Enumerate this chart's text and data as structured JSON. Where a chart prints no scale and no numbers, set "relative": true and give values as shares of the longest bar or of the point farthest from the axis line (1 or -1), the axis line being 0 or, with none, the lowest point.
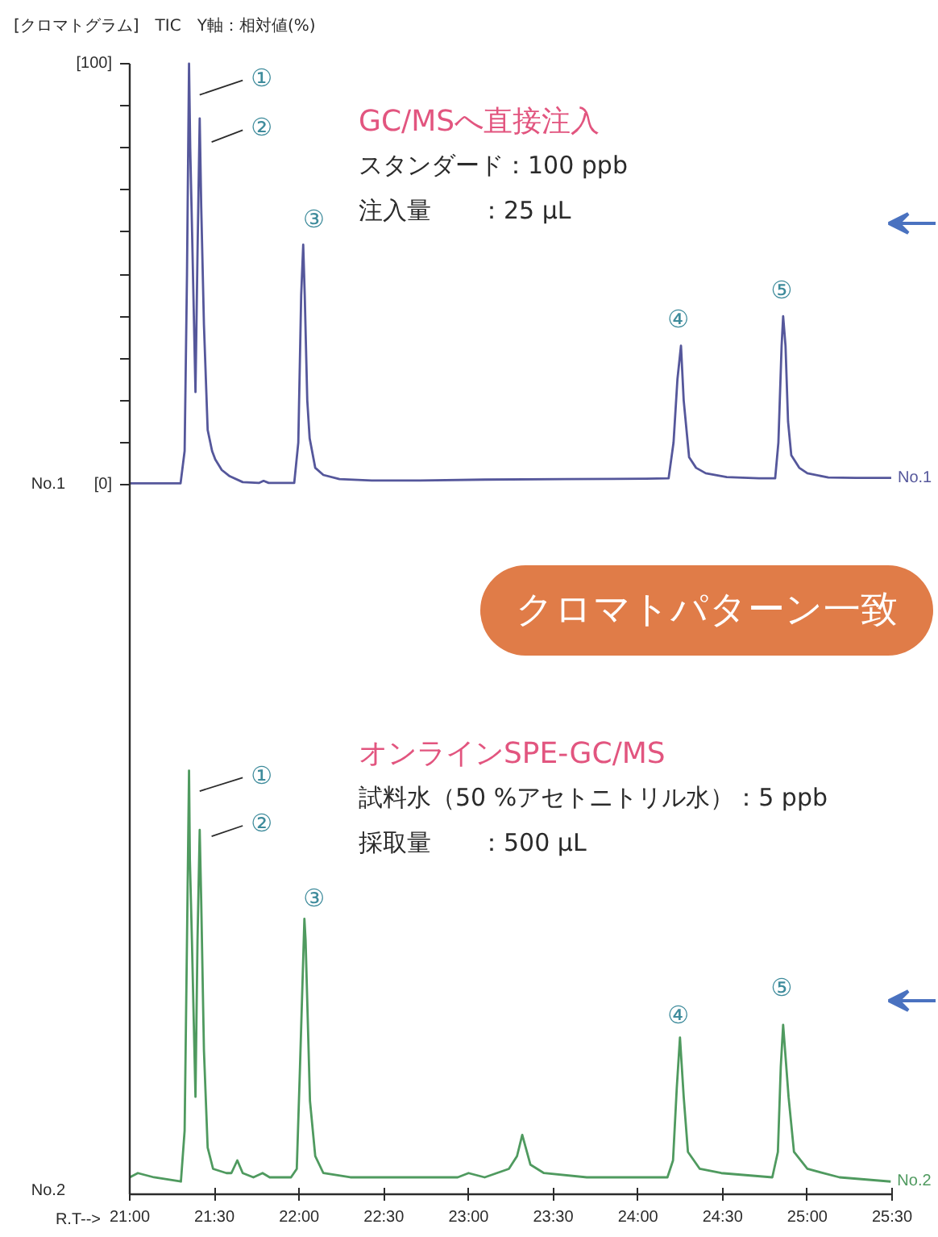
{
  "chart_data": [
    {
      "type": "line",
      "title": "[クロマトグラム]　TIC　Y軸：相対値(%)",
      "x": [
        21,
        21.3,
        21.324,
        21.338,
        21.35,
        21.357,
        21.368,
        21.388,
        21.4,
        21.413,
        21.422,
        21.438,
        21.46,
        21.486,
        21.505,
        21.543,
        21.59,
        21.667,
        21.762,
        21.79,
        21.82,
        21.971,
        21.995,
        22.012,
        22.024,
        22.033,
        22.048,
        22.062,
        22.095,
        22.143,
        22.238,
        22.429,
        22.714,
        23.095,
        23.571,
        24.048,
        24.181,
        24.21,
        24.233,
        24.254,
        24.27,
        24.302,
        24.343,
        24.4,
        24.524,
        24.714,
        24.81,
        24.829,
        24.848,
        24.857,
        24.871,
        24.886,
        24.905,
        24.952,
        25,
        25.124,
        25.286,
        25.495
      ],
      "series": [
        {
          "name": "No.1",
          "color": "#55579b",
          "values": [
            0.3,
            0.3,
            8,
            50,
            100,
            80,
            60,
            22,
            55,
            87,
            66,
            38,
            13,
            8,
            6,
            3.5,
            2,
            0.6,
            0.4,
            0.9,
            0.4,
            0.4,
            10,
            45,
            57,
            45,
            20,
            11,
            4,
            2.3,
            1.3,
            1,
            1,
            1.2,
            1.3,
            1.4,
            1.5,
            10,
            25,
            33,
            20,
            6.5,
            4,
            2.7,
            1.8,
            1.5,
            1.5,
            10,
            33,
            40,
            33,
            15,
            7,
            4,
            2.7,
            1.7,
            1.6,
            1.6
          ]
        }
      ],
      "xlim": [
        21,
        25.5
      ],
      "ylim": [
        0,
        100
      ],
      "yticks": [
        {
          "value": 0,
          "label": "[0]"
        },
        {
          "value": 10,
          "label": null
        },
        {
          "value": 20,
          "label": null
        },
        {
          "value": 30,
          "label": null
        },
        {
          "value": 40,
          "label": null
        },
        {
          "value": 50,
          "label": null
        },
        {
          "value": 60,
          "label": null
        },
        {
          "value": 70,
          "label": null
        },
        {
          "value": 80,
          "label": null
        },
        {
          "value": 90,
          "label": null
        },
        {
          "value": 100,
          "label": "[100]"
        }
      ],
      "tick_labels": "y",
      "annotations": [
        "GC/MSへ直接注入",
        "スタンダード：100 ppb",
        "注入量　　：25 µL",
        "No.1",
        {
          "text": "①",
          "x": 21.35,
          "y": 100
        },
        {
          "text": "②",
          "x": 21.413,
          "y": 87
        },
        {
          "text": "③",
          "x": 22.024,
          "y": 57
        },
        {
          "text": "④",
          "x": 24.254,
          "y": 33
        },
        {
          "text": "⑤",
          "x": 24.857,
          "y": 40
        }
      ]
    },
    {
      "type": "line",
      "xlabel": "R.T-->",
      "relative": true,
      "x": [
        21,
        21.048,
        21.143,
        21.302,
        21.324,
        21.338,
        21.35,
        21.355,
        21.367,
        21.388,
        21.4,
        21.413,
        21.422,
        21.438,
        21.46,
        21.492,
        21.571,
        21.6,
        21.635,
        21.667,
        21.73,
        21.784,
        21.826,
        21.952,
        21.986,
        22.005,
        22.031,
        22.038,
        22.064,
        22.095,
        22.143,
        22.302,
        22.619,
        22.936,
        23,
        23.095,
        23.238,
        23.286,
        23.317,
        23.365,
        23.445,
        23.698,
        24.174,
        24.207,
        24.229,
        24.248,
        24.27,
        24.295,
        24.365,
        24.492,
        24.793,
        24.826,
        24.843,
        24.857,
        24.889,
        24.921,
        25,
        25.19,
        25.492
      ],
      "series": [
        {
          "name": "No.2",
          "color": "#4f9a5f",
          "values": [
            0.04,
            0.05,
            0.04,
            0.03,
            0.15,
            0.6,
            1,
            0.79,
            0.6,
            0.23,
            0.6,
            0.86,
            0.69,
            0.34,
            0.11,
            0.06,
            0.05,
            0.05,
            0.08,
            0.05,
            0.04,
            0.05,
            0.04,
            0.04,
            0.06,
            0.3,
            0.65,
            0.6,
            0.22,
            0.09,
            0.05,
            0.04,
            0.04,
            0.04,
            0.05,
            0.04,
            0.06,
            0.09,
            0.14,
            0.07,
            0.05,
            0.04,
            0.04,
            0.08,
            0.25,
            0.37,
            0.23,
            0.1,
            0.06,
            0.05,
            0.04,
            0.1,
            0.3,
            0.4,
            0.23,
            0.1,
            0.06,
            0.04,
            0.03
          ]
        }
      ],
      "xlim": [
        21,
        25.5
      ],
      "xticks": [
        {
          "value": 21,
          "label": "21:00"
        },
        {
          "value": 21.5,
          "label": "21:30"
        },
        {
          "value": 22,
          "label": "22:00"
        },
        {
          "value": 22.5,
          "label": "22:30"
        },
        {
          "value": 23,
          "label": "23:00"
        },
        {
          "value": 23.5,
          "label": "23:30"
        },
        {
          "value": 24,
          "label": "24:00"
        },
        {
          "value": 24.5,
          "label": "24:30"
        },
        {
          "value": 25,
          "label": "25:00"
        },
        {
          "value": 25.5,
          "label": "25:30"
        }
      ],
      "tick_labels": "x",
      "annotations": [
        "クロマトパターン一致",
        "オンラインSPE-GC/MS",
        "試料水（50 %アセトニトリル水）：5 ppb",
        "採取量　　：500 µL",
        "No.2",
        {
          "text": "①",
          "x": 21.35,
          "y": 1
        },
        {
          "text": "②",
          "x": 21.413,
          "y": 0.86
        },
        {
          "text": "③",
          "x": 22.031,
          "y": 0.65
        },
        {
          "text": "④",
          "x": 24.248,
          "y": 0.37
        },
        {
          "text": "⑤",
          "x": 24.857,
          "y": 0.4
        }
      ]
    }
  ]
}
